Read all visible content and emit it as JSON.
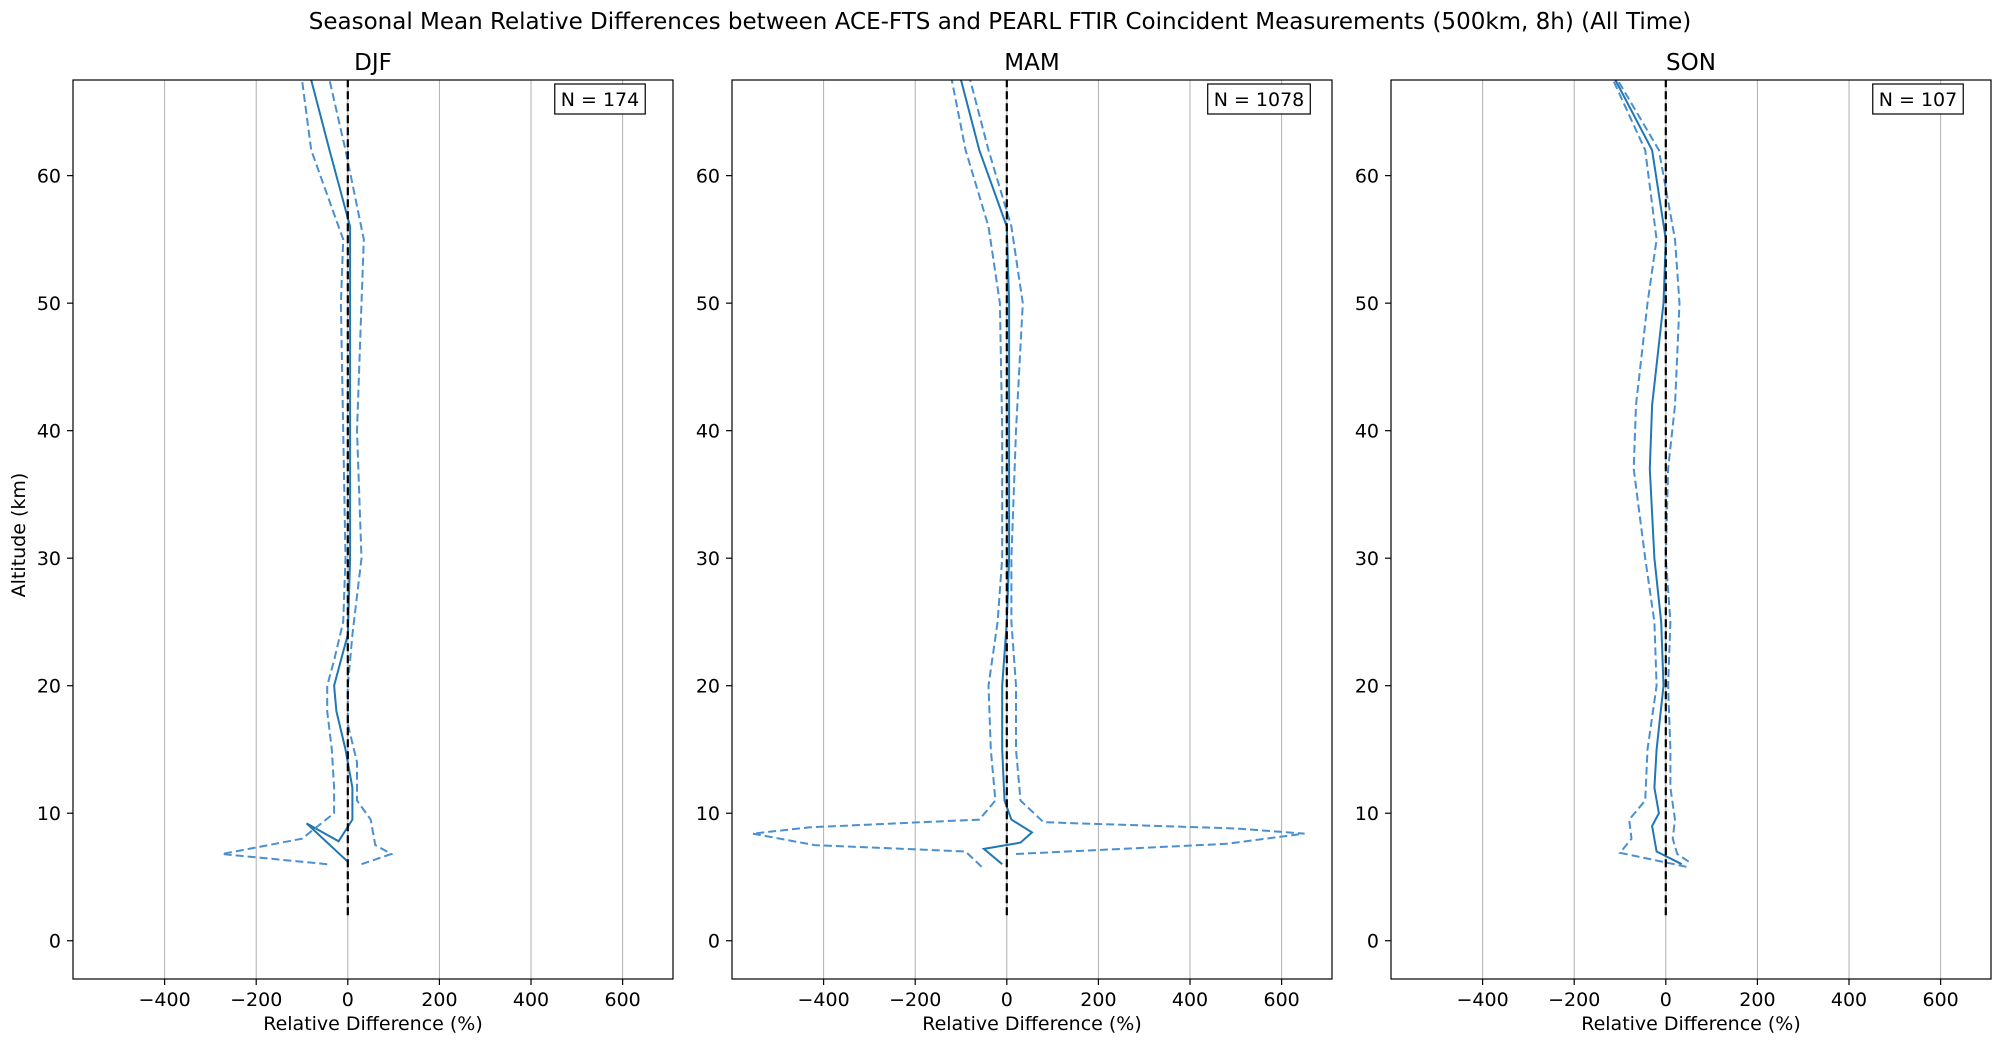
{
  "title": "Seasonal Mean Relative Differences between ACE-FTS and PEARL FTIR Coincident Measurements (500km, 8h) (All Time)",
  "ylabel": "Altitude (km)",
  "colors": {
    "mean": "#1f77b4",
    "spread": "#4a90d0",
    "zero": "#000000",
    "grid": "#b0b0b0"
  },
  "chart_data": [
    {
      "type": "line",
      "panel": "DJF",
      "title": "DJF",
      "n_label": "N = 174",
      "xlabel": "Relative Difference (%)",
      "xlim": [
        -600,
        710
      ],
      "ylim": [
        -3,
        67.5
      ],
      "xticks": [
        -400,
        -200,
        0,
        200,
        400,
        600
      ],
      "xticklabels": [
        "−400",
        "−200",
        "0",
        "200",
        "400",
        "600"
      ],
      "yticks": [
        0,
        10,
        20,
        30,
        40,
        50,
        60
      ],
      "yticklabels": [
        "0",
        "10",
        "20",
        "30",
        "40",
        "50",
        "60"
      ],
      "grid": "x",
      "zero_line": {
        "x": 0,
        "y": [
          2,
          67.5
        ]
      },
      "series": [
        {
          "role": "mean",
          "style": "solid",
          "points": [
            [
              0,
              6.2
            ],
            [
              -90,
              9.2
            ],
            [
              -20,
              7.8
            ],
            [
              10,
              9.5
            ],
            [
              10,
              12
            ],
            [
              -5,
              15
            ],
            [
              -25,
              18
            ],
            [
              -30,
              20
            ],
            [
              -15,
              22
            ],
            [
              0,
              24
            ],
            [
              5,
              30
            ],
            [
              5,
              40
            ],
            [
              5,
              50
            ],
            [
              5,
              56
            ],
            [
              -40,
              62
            ],
            [
              -80,
              67.5
            ]
          ]
        },
        {
          "role": "upper",
          "style": "dashed",
          "points": [
            [
              30,
              6
            ],
            [
              95,
              6.8
            ],
            [
              60,
              7.5
            ],
            [
              50,
              9.5
            ],
            [
              20,
              11
            ],
            [
              20,
              14
            ],
            [
              0,
              17
            ],
            [
              0,
              20
            ],
            [
              10,
              24
            ],
            [
              30,
              30
            ],
            [
              20,
              40
            ],
            [
              30,
              50
            ],
            [
              35,
              55
            ],
            [
              -5,
              62
            ],
            [
              -40,
              67.5
            ]
          ]
        },
        {
          "role": "lower",
          "style": "dashed",
          "points": [
            [
              -45,
              6
            ],
            [
              -275,
              6.8
            ],
            [
              -100,
              8
            ],
            [
              -30,
              10
            ],
            [
              -30,
              12
            ],
            [
              -35,
              15
            ],
            [
              -45,
              18
            ],
            [
              -45,
              20
            ],
            [
              -30,
              22
            ],
            [
              -10,
              25
            ],
            [
              -5,
              30
            ],
            [
              -10,
              40
            ],
            [
              -15,
              50
            ],
            [
              -10,
              55
            ],
            [
              -80,
              62
            ],
            [
              -100,
              67.5
            ]
          ]
        }
      ]
    },
    {
      "type": "line",
      "panel": "MAM",
      "title": "MAM",
      "n_label": "N = 1078",
      "xlabel": "Relative Difference (%)",
      "xlim": [
        -600,
        710
      ],
      "ylim": [
        -3,
        67.5
      ],
      "xticks": [
        -400,
        -200,
        0,
        200,
        400,
        600
      ],
      "xticklabels": [
        "−400",
        "−200",
        "0",
        "200",
        "400",
        "600"
      ],
      "yticks": [
        0,
        10,
        20,
        30,
        40,
        50,
        60
      ],
      "yticklabels": [
        "0",
        "10",
        "20",
        "30",
        "40",
        "50",
        "60"
      ],
      "grid": "x",
      "zero_line": {
        "x": 0,
        "y": [
          2,
          67.5
        ]
      },
      "series": [
        {
          "role": "mean",
          "style": "solid",
          "points": [
            [
              -10,
              6
            ],
            [
              -50,
              7.2
            ],
            [
              30,
              7.7
            ],
            [
              55,
              8.5
            ],
            [
              10,
              9.5
            ],
            [
              -5,
              11
            ],
            [
              -10,
              15
            ],
            [
              -10,
              20
            ],
            [
              0,
              25
            ],
            [
              5,
              30
            ],
            [
              5,
              40
            ],
            [
              5,
              50
            ],
            [
              0,
              56
            ],
            [
              -60,
              62
            ],
            [
              -100,
              67.5
            ]
          ]
        },
        {
          "role": "upper",
          "style": "dashed",
          "points": [
            [
              20,
              6.8
            ],
            [
              480,
              7.6
            ],
            [
              650,
              8.4
            ],
            [
              500,
              8.8
            ],
            [
              80,
              9.3
            ],
            [
              30,
              11
            ],
            [
              20,
              15
            ],
            [
              20,
              20
            ],
            [
              10,
              25
            ],
            [
              10,
              30
            ],
            [
              20,
              40
            ],
            [
              35,
              50
            ],
            [
              10,
              56
            ],
            [
              -40,
              62
            ],
            [
              -80,
              67.5
            ]
          ]
        },
        {
          "role": "lower",
          "style": "dashed",
          "points": [
            [
              -55,
              5.8
            ],
            [
              -90,
              7
            ],
            [
              -420,
              7.5
            ],
            [
              -555,
              8.4
            ],
            [
              -430,
              8.9
            ],
            [
              -60,
              9.5
            ],
            [
              -25,
              11
            ],
            [
              -35,
              15
            ],
            [
              -40,
              20
            ],
            [
              -20,
              25
            ],
            [
              -10,
              30
            ],
            [
              -10,
              40
            ],
            [
              -15,
              50
            ],
            [
              -40,
              56
            ],
            [
              -90,
              62
            ],
            [
              -120,
              67.5
            ]
          ]
        }
      ]
    },
    {
      "type": "line",
      "panel": "SON",
      "title": "SON",
      "n_label": "N = 107",
      "xlabel": "Relative Difference (%)",
      "xlim": [
        -600,
        710
      ],
      "ylim": [
        -3,
        67.5
      ],
      "xticks": [
        -400,
        -200,
        0,
        200,
        400,
        600
      ],
      "xticklabels": [
        "−400",
        "−200",
        "0",
        "200",
        "400",
        "600"
      ],
      "yticks": [
        0,
        10,
        20,
        30,
        40,
        50,
        60
      ],
      "yticklabels": [
        "0",
        "10",
        "20",
        "30",
        "40",
        "50",
        "60"
      ],
      "grid": "x",
      "zero_line": {
        "x": 0,
        "y": [
          2,
          67.5
        ]
      },
      "series": [
        {
          "role": "mean",
          "style": "solid",
          "points": [
            [
              35,
              6
            ],
            [
              -20,
              7
            ],
            [
              -30,
              9
            ],
            [
              -15,
              10
            ],
            [
              -25,
              12
            ],
            [
              -20,
              15
            ],
            [
              -5,
              20
            ],
            [
              -10,
              25
            ],
            [
              -25,
              30
            ],
            [
              -35,
              37
            ],
            [
              -30,
              42
            ],
            [
              -5,
              50
            ],
            [
              0,
              55
            ],
            [
              -30,
              62
            ],
            [
              -110,
              67.5
            ]
          ]
        },
        {
          "role": "upper",
          "style": "dashed",
          "points": [
            [
              50,
              6.2
            ],
            [
              25,
              6.8
            ],
            [
              15,
              8
            ],
            [
              20,
              9.5
            ],
            [
              10,
              12
            ],
            [
              10,
              15
            ],
            [
              5,
              20
            ],
            [
              10,
              25
            ],
            [
              0,
              30
            ],
            [
              5,
              37
            ],
            [
              20,
              42
            ],
            [
              30,
              50
            ],
            [
              20,
              55
            ],
            [
              -15,
              62
            ],
            [
              -105,
              67.5
            ]
          ]
        },
        {
          "role": "lower",
          "style": "dashed",
          "points": [
            [
              45,
              5.8
            ],
            [
              -100,
              6.9
            ],
            [
              -75,
              8
            ],
            [
              -80,
              9.5
            ],
            [
              -45,
              11
            ],
            [
              -40,
              15
            ],
            [
              -20,
              20
            ],
            [
              -25,
              25
            ],
            [
              -45,
              30
            ],
            [
              -70,
              37
            ],
            [
              -65,
              42
            ],
            [
              -40,
              50
            ],
            [
              -20,
              55
            ],
            [
              -45,
              62
            ],
            [
              -115,
              67.5
            ]
          ]
        }
      ]
    }
  ]
}
